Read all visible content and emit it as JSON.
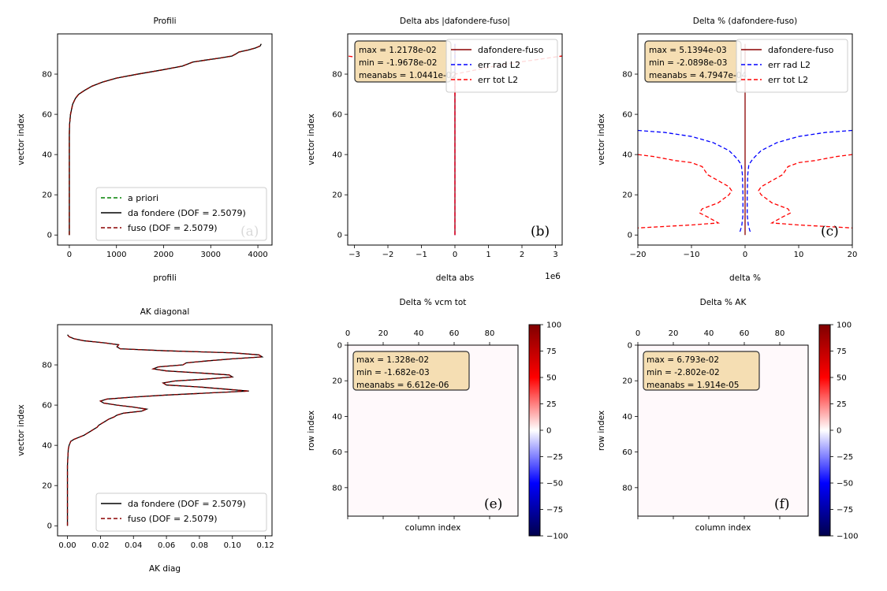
{
  "colors": {
    "green": "#008000",
    "black": "#000000",
    "darkred": "#8b0000",
    "blue": "#0000ff",
    "red": "#ff0000",
    "box_fill": "#f5deb3"
  },
  "chart_data": [
    {
      "id": "a",
      "type": "line",
      "title": "Profili",
      "xlabel": "profili",
      "ylabel": "vector index",
      "xlim": [
        -250,
        4300
      ],
      "ylim": [
        -5,
        100
      ],
      "xticks": [
        0,
        1000,
        2000,
        3000,
        4000
      ],
      "yticks": [
        0,
        20,
        40,
        60,
        80
      ],
      "panel_letter": "(a)",
      "legend_position": "lower right",
      "legend": [
        "a priori",
        "da fondere (DOF = 2.5079)",
        "fuso       (DOF = 2.5079)"
      ],
      "y": [
        0,
        10,
        20,
        30,
        40,
        50,
        55,
        60,
        65,
        68,
        70,
        72,
        74,
        76,
        78,
        80,
        82,
        84,
        86,
        87,
        88,
        89,
        90,
        91,
        92,
        93,
        94,
        95
      ],
      "series": [
        {
          "name": "a priori",
          "x": [
            0,
            0,
            0,
            0,
            0,
            0,
            5,
            25,
            70,
            130,
            200,
            330,
            480,
            700,
            1000,
            1450,
            1950,
            2400,
            2620,
            2900,
            3200,
            3450,
            3530,
            3600,
            3800,
            3950,
            4050,
            4070
          ]
        },
        {
          "name": "da fondere (DOF = 2.5079)",
          "x": [
            0,
            0,
            0,
            0,
            0,
            0,
            5,
            25,
            70,
            130,
            200,
            330,
            480,
            700,
            1000,
            1450,
            1950,
            2400,
            2620,
            2900,
            3200,
            3450,
            3530,
            3600,
            3800,
            3950,
            4050,
            4070
          ]
        },
        {
          "name": "fuso       (DOF = 2.5079)",
          "x": [
            0,
            0,
            0,
            0,
            0,
            0,
            5,
            25,
            70,
            130,
            200,
            330,
            480,
            700,
            1000,
            1450,
            1950,
            2400,
            2620,
            2900,
            3200,
            3450,
            3530,
            3600,
            3800,
            3950,
            4050,
            4070
          ]
        }
      ]
    },
    {
      "id": "b",
      "type": "line",
      "title": "Delta abs |dafondere-fuso|",
      "xlabel": "delta abs",
      "ylabel": "vector index",
      "xlim": [
        -3.2,
        3.2
      ],
      "ylim": [
        -5,
        100
      ],
      "x_offset_label": "1e6",
      "xticks": [
        -3,
        -2,
        -1,
        0,
        1,
        2,
        3
      ],
      "yticks": [
        0,
        20,
        40,
        60,
        80
      ],
      "panel_letter": "(b)",
      "stats": [
        "max  = 1.2178e-02",
        "min  = -1.9678e-02",
        "meanabs = 1.0441e-02"
      ],
      "legend": [
        "dafondere-fuso",
        "err rad L2",
        "err tot L2"
      ],
      "series": [
        {
          "name": "dafondere-fuso",
          "x": [
            0,
            0
          ],
          "y": [
            0,
            95
          ]
        },
        {
          "name": "err rad L2",
          "x": [
            0,
            0,
            0,
            0
          ],
          "y": [
            0,
            40,
            70,
            95
          ]
        },
        {
          "name": "err tot L2",
          "x": [
            0,
            0,
            0,
            0,
            0,
            -1.5,
            -3.2
          ],
          "y": [
            0,
            40,
            70,
            74,
            80,
            85,
            89
          ]
        },
        {
          "name": "err tot L2 (upper)",
          "x": [
            0,
            0,
            0,
            1.5,
            3.2
          ],
          "y": [
            70,
            74,
            80,
            85,
            89
          ]
        }
      ]
    },
    {
      "id": "c",
      "type": "line",
      "title": "Delta % (dafondere-fuso)",
      "xlabel": "delta %",
      "ylabel": "vector index",
      "xlim": [
        -20,
        20
      ],
      "ylim": [
        -5,
        100
      ],
      "xticks": [
        -20,
        -10,
        0,
        10,
        20
      ],
      "yticks": [
        0,
        20,
        40,
        60,
        80
      ],
      "panel_letter": "(c)",
      "stats": [
        "max  = 5.1394e-03",
        "min  = -2.0898e-03",
        "meanabs = 4.7947e-04"
      ],
      "legend": [
        "dafondere-fuso",
        "err rad L2",
        "err tot L2"
      ],
      "series": [
        {
          "name": "dafondere-fuso",
          "x": [
            0,
            0
          ],
          "y": [
            0,
            95
          ]
        },
        {
          "name": "err rad L2",
          "x": [
            -20,
            -15,
            -10,
            -6,
            -3,
            -1.5,
            -0.7,
            -0.5,
            -0.4,
            -0.4,
            -0.6,
            -0.9,
            -1.2
          ],
          "y": [
            52,
            51,
            49,
            46,
            42,
            38,
            35,
            30,
            20,
            10,
            5,
            2,
            1
          ]
        },
        {
          "name": "err rad L2 (right)",
          "x": [
            20,
            15,
            10,
            6,
            3,
            1.5,
            0.7,
            0.5,
            0.4,
            0.4,
            0.6,
            0.9,
            1.2
          ],
          "y": [
            52,
            51,
            49,
            46,
            42,
            38,
            35,
            30,
            20,
            10,
            5,
            2,
            1
          ]
        },
        {
          "name": "err tot L2",
          "x": [
            -20,
            -17,
            -13,
            -10,
            -8,
            -7.5,
            -7,
            -5,
            -3,
            -2.5,
            -3,
            -5,
            -8,
            -8.5,
            -7,
            -5,
            -10,
            -20
          ],
          "y": [
            40,
            39,
            37,
            36,
            34,
            32,
            30,
            27,
            24,
            22,
            20,
            16,
            13,
            11,
            9,
            6,
            5,
            3.5
          ]
        },
        {
          "name": "err tot L2 (right)",
          "x": [
            20,
            17,
            13,
            10,
            8,
            7.5,
            7,
            5,
            3,
            2.5,
            3,
            5,
            8,
            8.5,
            7,
            5,
            10,
            20
          ],
          "y": [
            40,
            39,
            37,
            36,
            34,
            32,
            30,
            27,
            24,
            22,
            20,
            16,
            13,
            11,
            9,
            6,
            5,
            3.5
          ]
        }
      ]
    },
    {
      "id": "d",
      "type": "line",
      "title": "AK diagonal",
      "xlabel": "AK diag",
      "ylabel": "vector index",
      "xlim": [
        -0.006,
        0.124
      ],
      "ylim": [
        -5,
        100
      ],
      "xticks": [
        0.0,
        0.02,
        0.04,
        0.06,
        0.08,
        0.1,
        0.12
      ],
      "xtick_labels": [
        "0.00",
        "0.02",
        "0.04",
        "0.06",
        "0.08",
        "0.10",
        "0.12"
      ],
      "yticks": [
        0,
        20,
        40,
        60,
        80
      ],
      "legend_position": "lower right",
      "legend": [
        "da fondere (DOF = 2.5079)",
        "fuso       (DOF = 2.5079)"
      ],
      "y": [
        0,
        10,
        20,
        30,
        38,
        40,
        42,
        43,
        44,
        45,
        46,
        47,
        48,
        49,
        50,
        51,
        52,
        53,
        54,
        55,
        56,
        57,
        58,
        59,
        60,
        61,
        62,
        63,
        64,
        65,
        66,
        67,
        68,
        69,
        70,
        71,
        72,
        73,
        74,
        75,
        76,
        77,
        78,
        79,
        80,
        81,
        82,
        83,
        84,
        85,
        86,
        87,
        88,
        89,
        90,
        91,
        92,
        93,
        94,
        95
      ],
      "series": [
        {
          "name": "da fondere (DOF = 2.5079)",
          "x": [
            0,
            0,
            0,
            0,
            0.0005,
            0.001,
            0.002,
            0.004,
            0.007,
            0.01,
            0.012,
            0.014,
            0.016,
            0.018,
            0.019,
            0.021,
            0.023,
            0.025,
            0.028,
            0.03,
            0.034,
            0.045,
            0.048,
            0.04,
            0.03,
            0.022,
            0.02,
            0.024,
            0.04,
            0.06,
            0.085,
            0.11,
            0.095,
            0.08,
            0.06,
            0.058,
            0.065,
            0.085,
            0.1,
            0.098,
            0.08,
            0.06,
            0.052,
            0.055,
            0.07,
            0.072,
            0.085,
            0.1,
            0.118,
            0.116,
            0.1,
            0.06,
            0.032,
            0.03,
            0.031,
            0.022,
            0.01,
            0.004,
            0.001,
            0.0
          ]
        },
        {
          "name": "fuso       (DOF = 2.5079)",
          "x": [
            0,
            0,
            0,
            0,
            0.0005,
            0.001,
            0.002,
            0.004,
            0.007,
            0.01,
            0.012,
            0.014,
            0.016,
            0.018,
            0.019,
            0.021,
            0.023,
            0.025,
            0.028,
            0.03,
            0.034,
            0.045,
            0.048,
            0.04,
            0.03,
            0.022,
            0.02,
            0.024,
            0.04,
            0.06,
            0.085,
            0.11,
            0.095,
            0.08,
            0.06,
            0.058,
            0.065,
            0.085,
            0.1,
            0.098,
            0.08,
            0.06,
            0.052,
            0.055,
            0.07,
            0.072,
            0.085,
            0.1,
            0.118,
            0.116,
            0.1,
            0.06,
            0.032,
            0.03,
            0.031,
            0.022,
            0.01,
            0.004,
            0.001,
            0.0
          ]
        }
      ]
    },
    {
      "id": "e",
      "type": "heatmap",
      "title": "Delta % vcm tot",
      "xlabel": "column index",
      "ylabel": "row index",
      "xlim": [
        0,
        96
      ],
      "ylim": [
        0,
        96
      ],
      "xticks": [
        0,
        20,
        40,
        60,
        80
      ],
      "yticks": [
        0,
        20,
        40,
        60,
        80
      ],
      "panel_letter": "(e)",
      "colorbar_range": [
        -100,
        100
      ],
      "colorbar_ticks": [
        100,
        75,
        50,
        25,
        0,
        -25,
        -50,
        -75,
        -100
      ],
      "colorbar_tick_labels": [
        "100",
        "75",
        "50",
        "25",
        "0",
        "−25",
        "−50",
        "−75",
        "−100"
      ],
      "colormap": "seismic",
      "stats": [
        "max  = 1.328e-02",
        "min  = -1.682e-03",
        "meanabs = 6.612e-06"
      ]
    },
    {
      "id": "f",
      "type": "heatmap",
      "title": "Delta % AK",
      "xlabel": "column index",
      "ylabel": "row index",
      "xlim": [
        0,
        96
      ],
      "ylim": [
        0,
        96
      ],
      "xticks": [
        0,
        20,
        40,
        60,
        80
      ],
      "yticks": [
        0,
        20,
        40,
        60,
        80
      ],
      "panel_letter": "(f)",
      "colorbar_range": [
        -100,
        100
      ],
      "colorbar_ticks": [
        100,
        75,
        50,
        25,
        0,
        -25,
        -50,
        -75,
        -100
      ],
      "colorbar_tick_labels": [
        "100",
        "75",
        "50",
        "25",
        "0",
        "−25",
        "−50",
        "−75",
        "−100"
      ],
      "colormap": "seismic",
      "stats": [
        "max  = 6.793e-02",
        "min  = -2.802e-02",
        "meanabs = 1.914e-05"
      ]
    }
  ]
}
